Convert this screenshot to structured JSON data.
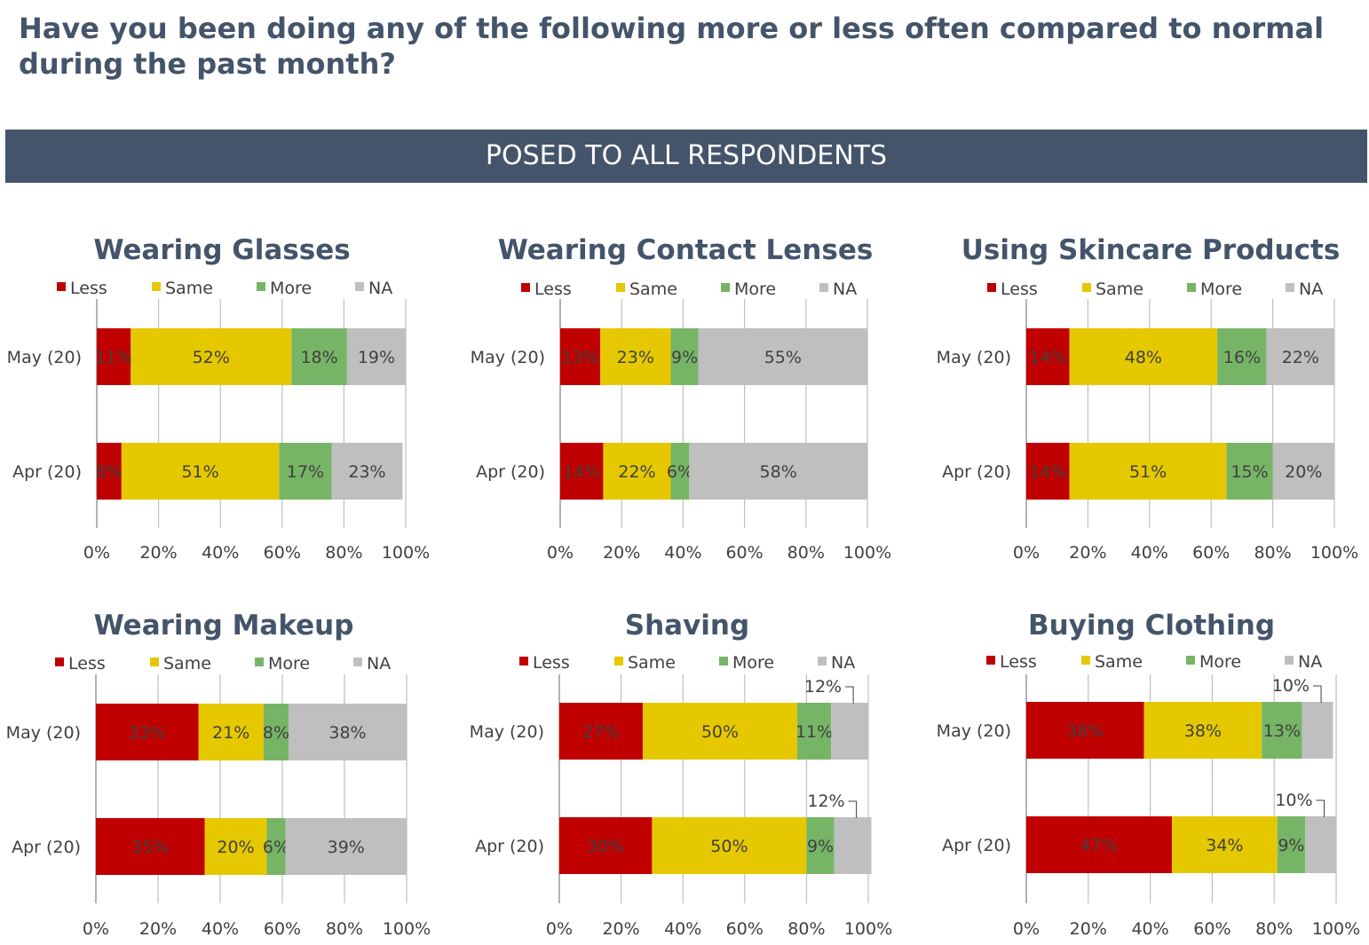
{
  "page": {
    "title": "Have you been doing any of the following more or less often compared to normal during the past month?",
    "banner": "POSED TO ALL RESPONDENTS"
  },
  "colors": {
    "less": "#C00000",
    "same": "#E6C800",
    "more": "#77B566",
    "na": "#BFBFBF",
    "title": "#44546A",
    "grid": "#BFBFBF",
    "text": "#404040"
  },
  "chart_data": [
    {
      "type": "bar",
      "orientation": "horizontal",
      "stacked": true,
      "title": "Wearing Glasses",
      "categories": [
        "May (20)",
        "Apr (20)"
      ],
      "series": [
        {
          "name": "Less",
          "values": [
            11,
            8
          ],
          "labels": [
            "11%",
            "8%"
          ]
        },
        {
          "name": "Same",
          "values": [
            52,
            51
          ],
          "labels": [
            "52%",
            "51%"
          ]
        },
        {
          "name": "More",
          "values": [
            18,
            17
          ],
          "labels": [
            "18%",
            "17%"
          ]
        },
        {
          "name": "NA",
          "values": [
            19,
            23
          ],
          "labels": [
            "19%",
            "23%"
          ]
        }
      ],
      "xlim": [
        0,
        100
      ],
      "xticks": [
        "0%",
        "20%",
        "40%",
        "60%",
        "80%",
        "100%"
      ],
      "grid": true,
      "legend": "top"
    },
    {
      "type": "bar",
      "orientation": "horizontal",
      "stacked": true,
      "title": "Wearing Contact Lenses",
      "categories": [
        "May (20)",
        "Apr (20)"
      ],
      "series": [
        {
          "name": "Less",
          "values": [
            13,
            14
          ],
          "labels": [
            "13%",
            "14%"
          ]
        },
        {
          "name": "Same",
          "values": [
            23,
            22
          ],
          "labels": [
            "23%",
            "22%"
          ]
        },
        {
          "name": "More",
          "values": [
            9,
            6
          ],
          "labels": [
            "9%",
            "6%"
          ]
        },
        {
          "name": "NA",
          "values": [
            55,
            58
          ],
          "labels": [
            "55%",
            "58%"
          ]
        }
      ],
      "xlim": [
        0,
        100
      ],
      "xticks": [
        "0%",
        "20%",
        "40%",
        "60%",
        "80%",
        "100%"
      ],
      "grid": true,
      "legend": "top"
    },
    {
      "type": "bar",
      "orientation": "horizontal",
      "stacked": true,
      "title": "Using Skincare Products",
      "categories": [
        "May (20)",
        "Apr (20)"
      ],
      "series": [
        {
          "name": "Less",
          "values": [
            14,
            14
          ],
          "labels": [
            "14%",
            "14%"
          ]
        },
        {
          "name": "Same",
          "values": [
            48,
            51
          ],
          "labels": [
            "48%",
            "51%"
          ]
        },
        {
          "name": "More",
          "values": [
            16,
            15
          ],
          "labels": [
            "16%",
            "15%"
          ]
        },
        {
          "name": "NA",
          "values": [
            22,
            20
          ],
          "labels": [
            "22%",
            "20%"
          ]
        }
      ],
      "xlim": [
        0,
        100
      ],
      "xticks": [
        "0%",
        "20%",
        "40%",
        "60%",
        "80%",
        "100%"
      ],
      "grid": true,
      "legend": "top"
    },
    {
      "type": "bar",
      "orientation": "horizontal",
      "stacked": true,
      "title": "Wearing Makeup",
      "categories": [
        "May (20)",
        "Apr (20)"
      ],
      "series": [
        {
          "name": "Less",
          "values": [
            33,
            35
          ],
          "labels": [
            "33%",
            "35%"
          ]
        },
        {
          "name": "Same",
          "values": [
            21,
            20
          ],
          "labels": [
            "21%",
            "20%"
          ]
        },
        {
          "name": "More",
          "values": [
            8,
            6
          ],
          "labels": [
            "8%",
            "6%"
          ]
        },
        {
          "name": "NA",
          "values": [
            38,
            39
          ],
          "labels": [
            "38%",
            "39%"
          ]
        }
      ],
      "xlim": [
        0,
        100
      ],
      "xticks": [
        "0%",
        "20%",
        "40%",
        "60%",
        "80%",
        "100%"
      ],
      "grid": true,
      "legend": "top"
    },
    {
      "type": "bar",
      "orientation": "horizontal",
      "stacked": true,
      "title": "Shaving",
      "categories": [
        "May (20)",
        "Apr (20)"
      ],
      "series": [
        {
          "name": "Less",
          "values": [
            27,
            30
          ],
          "labels": [
            "27%",
            "30%"
          ]
        },
        {
          "name": "Same",
          "values": [
            50,
            50
          ],
          "labels": [
            "50%",
            "50%"
          ]
        },
        {
          "name": "More",
          "values": [
            11,
            9
          ],
          "labels": [
            "11%",
            "9%"
          ]
        },
        {
          "name": "NA",
          "values": [
            12,
            12
          ],
          "labels": [
            "12%",
            "12%"
          ],
          "label_callout": true
        }
      ],
      "xlim": [
        0,
        100
      ],
      "xticks": [
        "0%",
        "20%",
        "40%",
        "60%",
        "80%",
        "100%"
      ],
      "grid": true,
      "legend": "top"
    },
    {
      "type": "bar",
      "orientation": "horizontal",
      "stacked": true,
      "title": "Buying Clothing",
      "categories": [
        "May (20)",
        "Apr (20)"
      ],
      "series": [
        {
          "name": "Less",
          "values": [
            38,
            47
          ],
          "labels": [
            "38%",
            "47%"
          ]
        },
        {
          "name": "Same",
          "values": [
            38,
            34
          ],
          "labels": [
            "38%",
            "34%"
          ]
        },
        {
          "name": "More",
          "values": [
            13,
            9
          ],
          "labels": [
            "13%",
            "9%"
          ]
        },
        {
          "name": "NA",
          "values": [
            10,
            10
          ],
          "labels": [
            "10%",
            "10%"
          ],
          "label_callout": true
        }
      ],
      "xlim": [
        0,
        100
      ],
      "xticks": [
        "0%",
        "20%",
        "40%",
        "60%",
        "80%",
        "100%"
      ],
      "grid": true,
      "legend": "top"
    }
  ]
}
